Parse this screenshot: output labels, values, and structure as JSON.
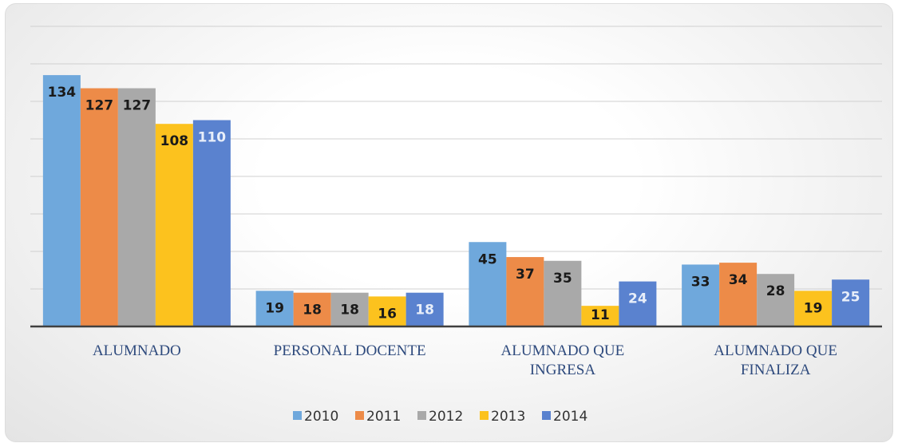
{
  "chart_data": {
    "type": "bar",
    "categories": [
      "ALUMNADO",
      "PERSONAL DOCENTE",
      "ALUMNADO QUE INGRESA",
      "ALUMNADO QUE FINALIZA"
    ],
    "series": [
      {
        "name": "2010",
        "color": "#6fa8dc",
        "label_color": "#1a1a1a",
        "values": [
          134,
          19,
          45,
          33
        ]
      },
      {
        "name": "2011",
        "color": "#ed8b48",
        "label_color": "#1a1a1a",
        "values": [
          127,
          18,
          37,
          34
        ]
      },
      {
        "name": "2012",
        "color": "#a9a9a9",
        "label_color": "#1a1a1a",
        "values": [
          127,
          18,
          35,
          28
        ]
      },
      {
        "name": "2013",
        "color": "#fcc21e",
        "label_color": "#1a1a1a",
        "values": [
          108,
          16,
          11,
          19
        ]
      },
      {
        "name": "2014",
        "color": "#5a82cf",
        "label_color": "#e8eef9",
        "values": [
          110,
          18,
          24,
          25
        ]
      }
    ],
    "ylim": [
      0,
      160
    ],
    "yticks": [
      0,
      20,
      40,
      60,
      80,
      100,
      120,
      140,
      160
    ],
    "grid": true
  }
}
